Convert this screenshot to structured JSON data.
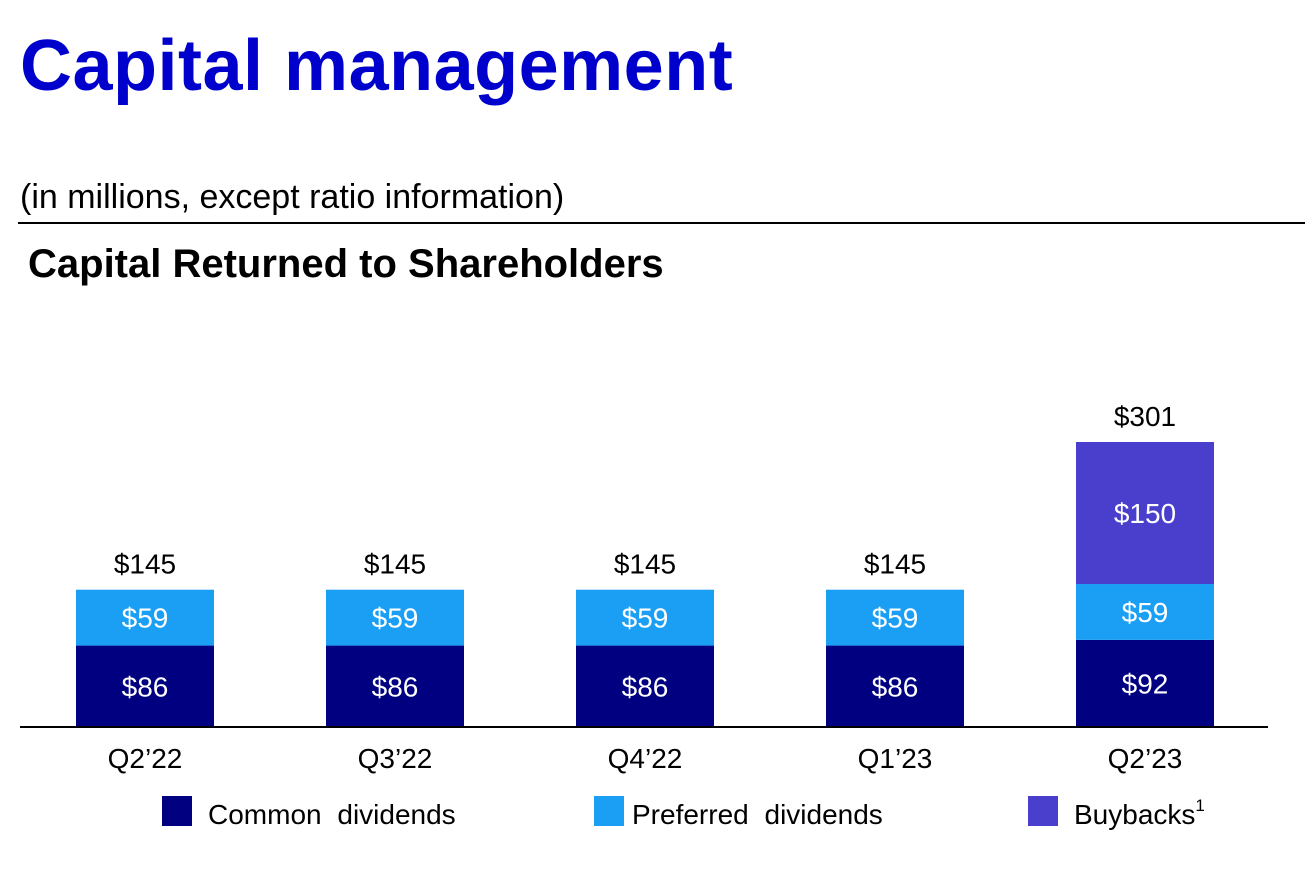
{
  "page": {
    "title": "Capital management",
    "subtitle": "(in millions, except ratio information)",
    "section_title": "Capital Returned to Shareholders"
  },
  "legend": [
    {
      "label": "Common dividends",
      "sup": "",
      "color": "#000080"
    },
    {
      "label": "Preferred dividends",
      "sup": "",
      "color": "#1a9ff5"
    },
    {
      "label": "Buybacks",
      "sup": "1",
      "color": "#4a3fcc"
    }
  ],
  "chart_data": {
    "type": "bar",
    "stacked": true,
    "title": "Capital Returned to Shareholders",
    "categories": [
      "Q2’22",
      "Q3’22",
      "Q4’22",
      "Q1’23",
      "Q2’23"
    ],
    "series": [
      {
        "name": "Common dividends",
        "color": "#000080",
        "values": [
          86,
          86,
          86,
          86,
          92
        ],
        "labels": [
          "$86",
          "$86",
          "$86",
          "$86",
          "$92"
        ]
      },
      {
        "name": "Preferred dividends",
        "color": "#1a9ff5",
        "values": [
          59,
          59,
          59,
          59,
          59
        ],
        "labels": [
          "$59",
          "$59",
          "$59",
          "$59",
          "$59"
        ]
      },
      {
        "name": "Buybacks",
        "color": "#4a3fcc",
        "values": [
          0,
          0,
          0,
          0,
          150
        ],
        "labels": [
          "",
          "",
          "",
          "",
          "$150"
        ]
      }
    ],
    "totals": [
      145,
      145,
      145,
      145,
      301
    ],
    "total_labels": [
      "$145",
      "$145",
      "$145",
      "$145",
      "$301"
    ],
    "ylim": [
      0,
      301
    ],
    "grid": false,
    "legend_position": "bottom"
  }
}
